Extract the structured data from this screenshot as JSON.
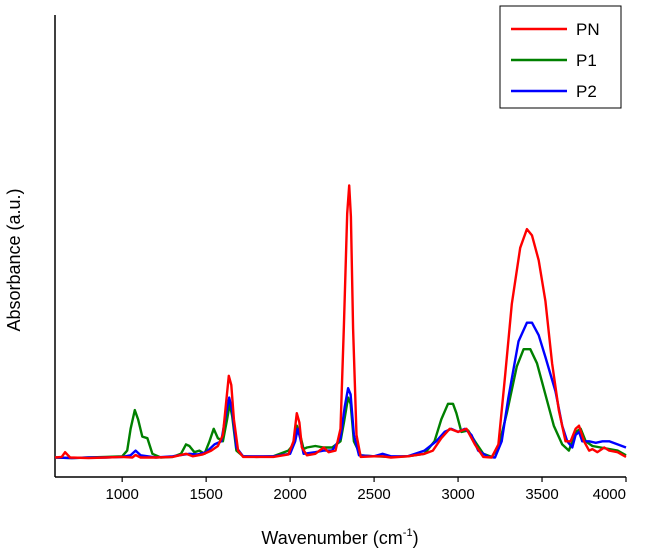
{
  "chart_data": {
    "type": "line",
    "xlabel_main": "Wavenumber (cm",
    "xlabel_sup": "-1",
    "xlabel_end": ")",
    "ylabel": "Absorbance (a.u.)",
    "xlim": [
      600,
      4000
    ],
    "ylim": [
      0,
      1
    ],
    "x_ticks": [
      "1000",
      "1500",
      "2000",
      "2500",
      "3000",
      "3500",
      "4000"
    ],
    "y_ticks_shown": false,
    "grid": false,
    "legend_position": "top-right",
    "series": [
      {
        "name": "PN",
        "color": "#ff0000",
        "points": [
          [
            600,
            0.008
          ],
          [
            640,
            0.01
          ],
          [
            660,
            0.025
          ],
          [
            690,
            0.008
          ],
          [
            800,
            0.006
          ],
          [
            900,
            0.008
          ],
          [
            1000,
            0.01
          ],
          [
            1060,
            0.008
          ],
          [
            1080,
            0.016
          ],
          [
            1110,
            0.008
          ],
          [
            1200,
            0.008
          ],
          [
            1300,
            0.01
          ],
          [
            1380,
            0.02
          ],
          [
            1420,
            0.012
          ],
          [
            1480,
            0.018
          ],
          [
            1530,
            0.03
          ],
          [
            1570,
            0.045
          ],
          [
            1600,
            0.08
          ],
          [
            1620,
            0.19
          ],
          [
            1635,
            0.27
          ],
          [
            1650,
            0.24
          ],
          [
            1665,
            0.13
          ],
          [
            1690,
            0.03
          ],
          [
            1720,
            0.01
          ],
          [
            1800,
            0.01
          ],
          [
            1900,
            0.01
          ],
          [
            1990,
            0.018
          ],
          [
            2020,
            0.06
          ],
          [
            2040,
            0.15
          ],
          [
            2055,
            0.12
          ],
          [
            2070,
            0.04
          ],
          [
            2100,
            0.015
          ],
          [
            2150,
            0.02
          ],
          [
            2200,
            0.04
          ],
          [
            2230,
            0.025
          ],
          [
            2270,
            0.03
          ],
          [
            2300,
            0.1
          ],
          [
            2320,
            0.43
          ],
          [
            2340,
            0.79
          ],
          [
            2352,
            0.88
          ],
          [
            2362,
            0.78
          ],
          [
            2375,
            0.42
          ],
          [
            2395,
            0.08
          ],
          [
            2420,
            0.01
          ],
          [
            2500,
            0.012
          ],
          [
            2550,
            0.012
          ],
          [
            2600,
            0.008
          ],
          [
            2700,
            0.012
          ],
          [
            2800,
            0.02
          ],
          [
            2850,
            0.03
          ],
          [
            2900,
            0.07
          ],
          [
            2950,
            0.1
          ],
          [
            3000,
            0.09
          ],
          [
            3050,
            0.1
          ],
          [
            3100,
            0.05
          ],
          [
            3150,
            0.01
          ],
          [
            3200,
            0.008
          ],
          [
            3240,
            0.05
          ],
          [
            3280,
            0.27
          ],
          [
            3320,
            0.5
          ],
          [
            3370,
            0.68
          ],
          [
            3410,
            0.74
          ],
          [
            3440,
            0.72
          ],
          [
            3480,
            0.64
          ],
          [
            3520,
            0.51
          ],
          [
            3560,
            0.31
          ],
          [
            3600,
            0.16
          ],
          [
            3640,
            0.06
          ],
          [
            3670,
            0.06
          ],
          [
            3700,
            0.1
          ],
          [
            3720,
            0.11
          ],
          [
            3750,
            0.06
          ],
          [
            3780,
            0.03
          ],
          [
            3800,
            0.035
          ],
          [
            3830,
            0.025
          ],
          [
            3870,
            0.04
          ],
          [
            3900,
            0.03
          ],
          [
            3950,
            0.025
          ],
          [
            4000,
            0.01
          ]
        ]
      },
      {
        "name": "P1",
        "color": "#008000",
        "points": [
          [
            600,
            0.008
          ],
          [
            700,
            0.006
          ],
          [
            800,
            0.008
          ],
          [
            900,
            0.01
          ],
          [
            1000,
            0.012
          ],
          [
            1030,
            0.03
          ],
          [
            1050,
            0.1
          ],
          [
            1075,
            0.16
          ],
          [
            1095,
            0.13
          ],
          [
            1120,
            0.075
          ],
          [
            1150,
            0.07
          ],
          [
            1180,
            0.02
          ],
          [
            1230,
            0.008
          ],
          [
            1300,
            0.01
          ],
          [
            1350,
            0.02
          ],
          [
            1380,
            0.05
          ],
          [
            1400,
            0.045
          ],
          [
            1430,
            0.025
          ],
          [
            1460,
            0.03
          ],
          [
            1490,
            0.02
          ],
          [
            1520,
            0.06
          ],
          [
            1545,
            0.1
          ],
          [
            1570,
            0.07
          ],
          [
            1600,
            0.06
          ],
          [
            1625,
            0.13
          ],
          [
            1640,
            0.18
          ],
          [
            1655,
            0.14
          ],
          [
            1680,
            0.03
          ],
          [
            1720,
            0.012
          ],
          [
            1800,
            0.01
          ],
          [
            1900,
            0.012
          ],
          [
            1990,
            0.03
          ],
          [
            2020,
            0.05
          ],
          [
            2040,
            0.11
          ],
          [
            2060,
            0.08
          ],
          [
            2080,
            0.035
          ],
          [
            2100,
            0.04
          ],
          [
            2150,
            0.045
          ],
          [
            2200,
            0.04
          ],
          [
            2250,
            0.04
          ],
          [
            2300,
            0.06
          ],
          [
            2320,
            0.12
          ],
          [
            2345,
            0.2
          ],
          [
            2360,
            0.18
          ],
          [
            2380,
            0.06
          ],
          [
            2420,
            0.015
          ],
          [
            2500,
            0.012
          ],
          [
            2600,
            0.01
          ],
          [
            2700,
            0.012
          ],
          [
            2800,
            0.02
          ],
          [
            2860,
            0.06
          ],
          [
            2900,
            0.13
          ],
          [
            2940,
            0.18
          ],
          [
            2970,
            0.18
          ],
          [
            2990,
            0.15
          ],
          [
            3020,
            0.09
          ],
          [
            3060,
            0.095
          ],
          [
            3100,
            0.06
          ],
          [
            3150,
            0.02
          ],
          [
            3200,
            0.01
          ],
          [
            3240,
            0.04
          ],
          [
            3290,
            0.15
          ],
          [
            3350,
            0.3
          ],
          [
            3390,
            0.355
          ],
          [
            3430,
            0.355
          ],
          [
            3470,
            0.31
          ],
          [
            3520,
            0.21
          ],
          [
            3570,
            0.11
          ],
          [
            3620,
            0.05
          ],
          [
            3660,
            0.03
          ],
          [
            3700,
            0.09
          ],
          [
            3730,
            0.1
          ],
          [
            3760,
            0.06
          ],
          [
            3800,
            0.045
          ],
          [
            3850,
            0.04
          ],
          [
            3900,
            0.035
          ],
          [
            3950,
            0.03
          ],
          [
            4000,
            0.015
          ]
        ]
      },
      {
        "name": "P2",
        "color": "#0000ff",
        "points": [
          [
            600,
            0.008
          ],
          [
            700,
            0.006
          ],
          [
            800,
            0.008
          ],
          [
            900,
            0.008
          ],
          [
            1000,
            0.01
          ],
          [
            1050,
            0.015
          ],
          [
            1080,
            0.03
          ],
          [
            1110,
            0.015
          ],
          [
            1200,
            0.008
          ],
          [
            1300,
            0.012
          ],
          [
            1400,
            0.02
          ],
          [
            1450,
            0.018
          ],
          [
            1500,
            0.025
          ],
          [
            1550,
            0.05
          ],
          [
            1590,
            0.06
          ],
          [
            1615,
            0.14
          ],
          [
            1637,
            0.2
          ],
          [
            1655,
            0.16
          ],
          [
            1680,
            0.04
          ],
          [
            1720,
            0.012
          ],
          [
            1800,
            0.012
          ],
          [
            1900,
            0.012
          ],
          [
            2000,
            0.02
          ],
          [
            2030,
            0.06
          ],
          [
            2045,
            0.1
          ],
          [
            2060,
            0.07
          ],
          [
            2080,
            0.02
          ],
          [
            2150,
            0.025
          ],
          [
            2200,
            0.03
          ],
          [
            2250,
            0.03
          ],
          [
            2300,
            0.07
          ],
          [
            2325,
            0.17
          ],
          [
            2345,
            0.23
          ],
          [
            2360,
            0.21
          ],
          [
            2380,
            0.08
          ],
          [
            2410,
            0.015
          ],
          [
            2500,
            0.012
          ],
          [
            2550,
            0.02
          ],
          [
            2600,
            0.012
          ],
          [
            2700,
            0.012
          ],
          [
            2800,
            0.03
          ],
          [
            2870,
            0.06
          ],
          [
            2920,
            0.09
          ],
          [
            2960,
            0.1
          ],
          [
            3000,
            0.09
          ],
          [
            3040,
            0.1
          ],
          [
            3080,
            0.08
          ],
          [
            3120,
            0.03
          ],
          [
            3180,
            0.01
          ],
          [
            3220,
            0.008
          ],
          [
            3260,
            0.06
          ],
          [
            3300,
            0.2
          ],
          [
            3360,
            0.38
          ],
          [
            3410,
            0.44
          ],
          [
            3440,
            0.44
          ],
          [
            3480,
            0.4
          ],
          [
            3520,
            0.33
          ],
          [
            3580,
            0.22
          ],
          [
            3620,
            0.11
          ],
          [
            3650,
            0.06
          ],
          [
            3680,
            0.04
          ],
          [
            3700,
            0.08
          ],
          [
            3720,
            0.09
          ],
          [
            3740,
            0.06
          ],
          [
            3780,
            0.06
          ],
          [
            3820,
            0.055
          ],
          [
            3860,
            0.06
          ],
          [
            3900,
            0.06
          ],
          [
            3950,
            0.05
          ],
          [
            4000,
            0.04
          ]
        ]
      }
    ]
  }
}
